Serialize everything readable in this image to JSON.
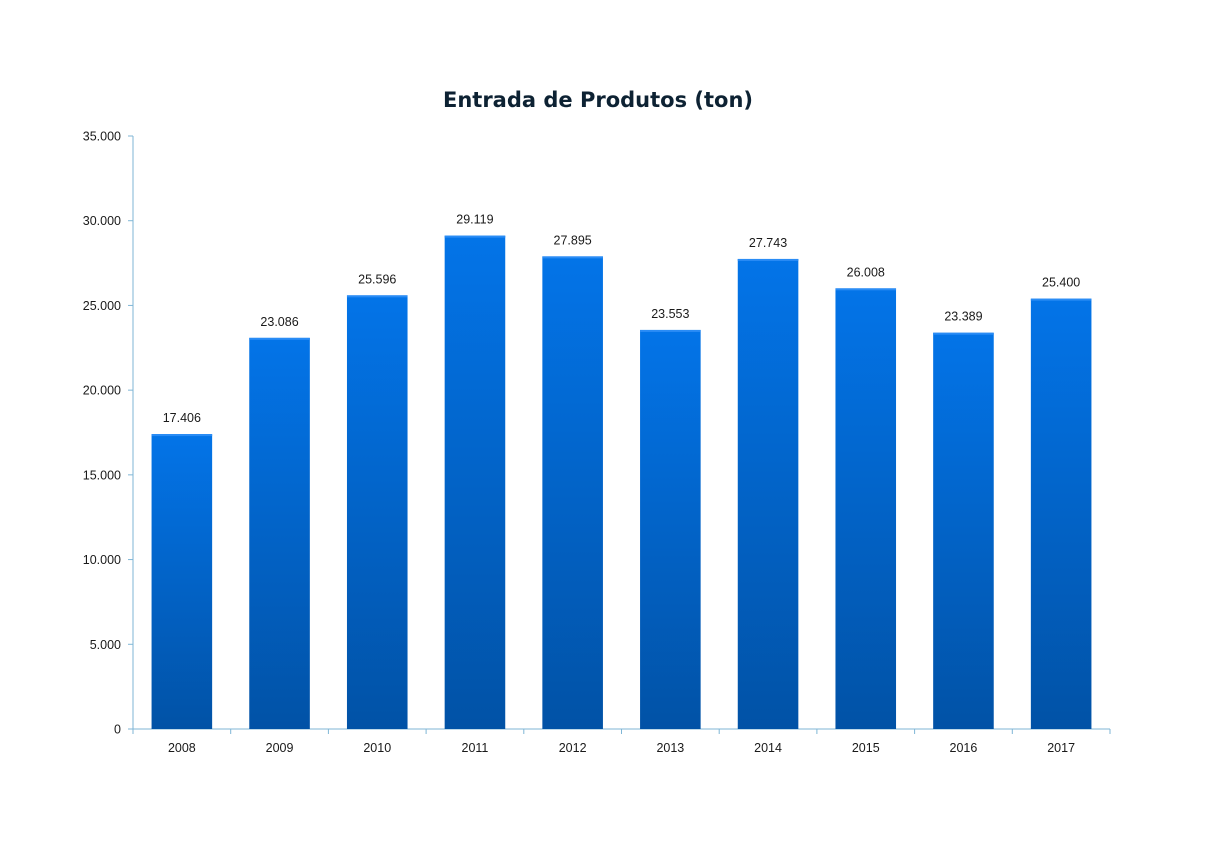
{
  "chart_data": {
    "type": "bar",
    "title": "Entrada de Produtos (ton)",
    "xlabel": "",
    "ylabel": "",
    "categories": [
      "2008",
      "2009",
      "2010",
      "2011",
      "2012",
      "2013",
      "2014",
      "2015",
      "2016",
      "2017"
    ],
    "values": [
      17406,
      23086,
      25596,
      29119,
      27895,
      23553,
      27743,
      26008,
      23389,
      25400
    ],
    "value_labels": [
      "17.406",
      "23.086",
      "25.596",
      "29.119",
      "27.895",
      "23.553",
      "27.743",
      "26.008",
      "23.389",
      "25.400"
    ],
    "ylim": [
      0,
      35000
    ],
    "yticks": [
      0,
      5000,
      10000,
      15000,
      20000,
      25000,
      30000,
      35000
    ],
    "ytick_labels": [
      "0",
      "5.000",
      "10.000",
      "15.000",
      "20.000",
      "25.000",
      "30.000",
      "35.000"
    ],
    "grid": false,
    "legend": "none",
    "colors": {
      "bar_top": "#0374e8",
      "bar_bottom": "#0152a6",
      "axis": "#7fb6d6",
      "text": "#1a1a1a",
      "title": "#0d2233"
    }
  }
}
